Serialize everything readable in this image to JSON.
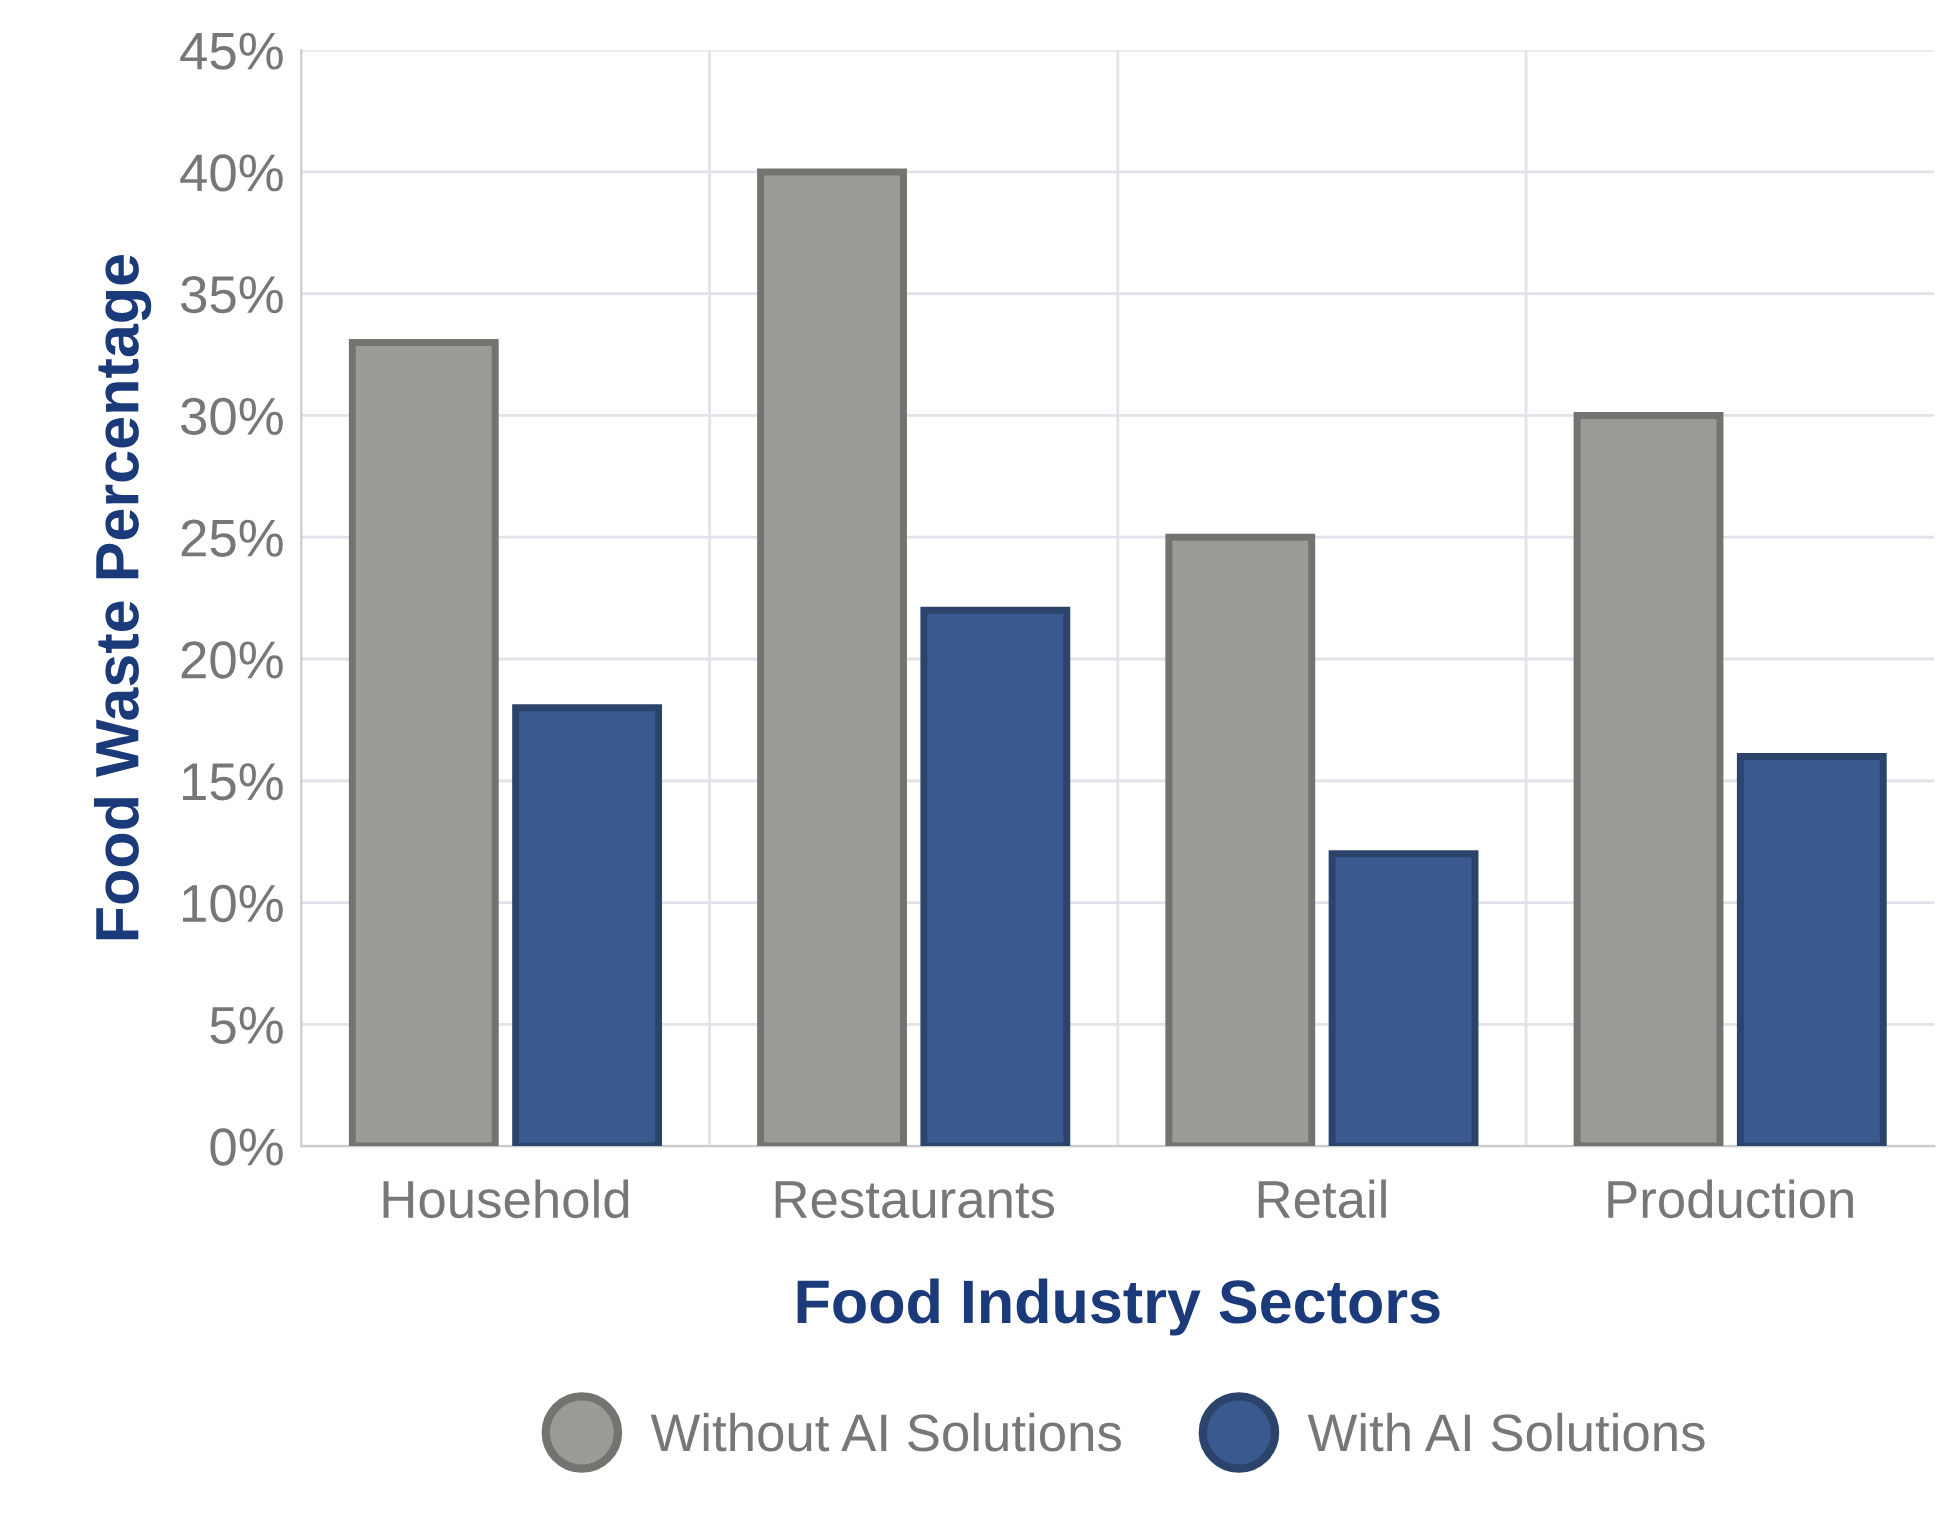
{
  "chart_data": {
    "type": "bar",
    "xlabel": "Food Industry Sectors",
    "ylabel": "Food Waste Percentage",
    "categories": [
      "Household",
      "Restaurants",
      "Retail",
      "Production"
    ],
    "series": [
      {
        "name": "Without AI Solutions",
        "color": "#9a9b96",
        "values": [
          33,
          40,
          25,
          30
        ]
      },
      {
        "name": "With AI Solutions",
        "color": "#3a5a8f",
        "values": [
          18,
          22,
          12,
          16
        ]
      }
    ],
    "ylim": [
      0,
      45
    ],
    "yticks": [
      {
        "value": 0,
        "label": "0%"
      },
      {
        "value": 5,
        "label": "5%"
      },
      {
        "value": 10,
        "label": "10%"
      },
      {
        "value": 15,
        "label": "15%"
      },
      {
        "value": 20,
        "label": "20%"
      },
      {
        "value": 25,
        "label": "25%"
      },
      {
        "value": 30,
        "label": "30%"
      },
      {
        "value": 35,
        "label": "35%"
      },
      {
        "value": 40,
        "label": "40%"
      },
      {
        "value": 45,
        "label": "45%"
      }
    ],
    "grid": true,
    "legend": "bottom"
  }
}
